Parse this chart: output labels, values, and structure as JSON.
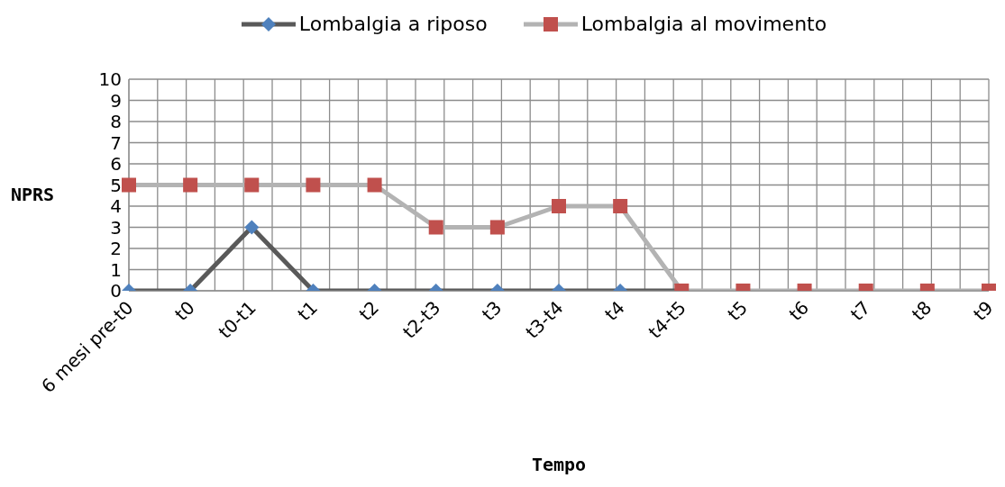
{
  "chart_data": {
    "type": "line",
    "xlabel": "Tempo",
    "ylabel": "NPRS",
    "categories": [
      "6 mesi pre-t0",
      "t0",
      "t0-t1",
      "t1",
      "t2",
      "t2-t3",
      "t3",
      "t3-t4",
      "t4",
      "t4-t5",
      "t5",
      "t6",
      "t7",
      "t8",
      "t9"
    ],
    "series": [
      {
        "name": "Lombalgia a riposo",
        "color": "#595959",
        "marker": "diamond",
        "colors": [
          "#4f81bd",
          "#4f81bd",
          "#4f81bd",
          "#4f81bd",
          "#4f81bd",
          "#4f81bd",
          "#4f81bd",
          "#4f81bd",
          "#4f81bd",
          "#4f81bd",
          null,
          null,
          null,
          null,
          null
        ],
        "values": [
          0,
          0,
          3,
          0,
          0,
          0,
          0,
          0,
          0,
          0,
          null,
          null,
          null,
          null,
          null
        ]
      },
      {
        "name": "Lombalgia al movimento",
        "color": "#b3b3b3",
        "marker": "square",
        "colors": [
          "#c0504d",
          "#c0504d",
          "#c0504d",
          "#c0504d",
          "#c0504d",
          "#c0504d",
          "#c0504d",
          "#c0504d",
          "#c0504d",
          "#c0504d",
          "#c0504d",
          "#c0504d",
          "#c0504d",
          "#c0504d",
          "#c0504d"
        ],
        "values": [
          5,
          5,
          5,
          5,
          5,
          3,
          3,
          4,
          4,
          0,
          0,
          0,
          0,
          0,
          0
        ]
      }
    ],
    "ylim": [
      0,
      10
    ],
    "yticks": [
      0,
      1,
      2,
      3,
      4,
      5,
      6,
      7,
      8,
      9,
      10
    ],
    "grid": true,
    "legend": "top"
  }
}
